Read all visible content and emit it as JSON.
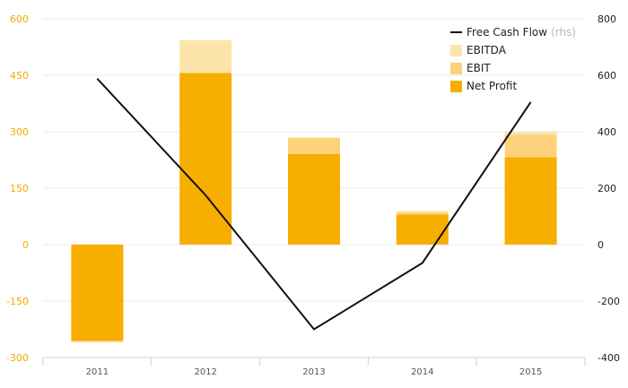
{
  "chart_data": {
    "type": "bar",
    "categories": [
      "2011",
      "2012",
      "2013",
      "2014",
      "2015"
    ],
    "stacked": true,
    "series": [
      {
        "name": "Net Profit",
        "axis": "left",
        "values": [
          -256,
          456,
          241,
          80,
          232
        ],
        "color": "#f7ae00"
      },
      {
        "name": "EBIT",
        "axis": "left",
        "values": [
          0,
          0,
          43,
          5,
          60
        ],
        "color": "#fdd27a"
      },
      {
        "name": "EBITDA",
        "axis": "left",
        "values": [
          -4,
          87,
          0,
          4,
          7
        ],
        "color": "#fde4a8"
      },
      {
        "name": "Free Cash Flow",
        "axis": "right",
        "type": "line",
        "values": [
          588,
          175,
          -300,
          -65,
          505
        ],
        "color": "#111111"
      }
    ],
    "y_left": {
      "ylim": [
        -300,
        600
      ],
      "ticks": [
        "600",
        "450",
        "300",
        "150",
        "0",
        "-150",
        "-300"
      ],
      "tick_values": [
        600,
        450,
        300,
        150,
        0,
        -150,
        -300
      ]
    },
    "y_right": {
      "ylim": [
        -400,
        800
      ],
      "ticks": [
        "800",
        "600",
        "400",
        "200",
        "0",
        "-200",
        "-400"
      ],
      "tick_values": [
        800,
        600,
        400,
        200,
        0,
        -200,
        -400
      ]
    },
    "legend": {
      "position": "top-right",
      "items": [
        {
          "label": "Free Cash Flow",
          "note": "(rhs)",
          "symbol": "line",
          "color": "#111111"
        },
        {
          "label": "EBITDA",
          "symbol": "box",
          "color": "#fde4a8"
        },
        {
          "label": "EBIT",
          "symbol": "box",
          "color": "#fdd27a"
        },
        {
          "label": "Net Profit",
          "symbol": "box",
          "color": "#f7ae00"
        }
      ]
    },
    "grid": true,
    "title": "",
    "xlabel": "",
    "ylabel": ""
  }
}
